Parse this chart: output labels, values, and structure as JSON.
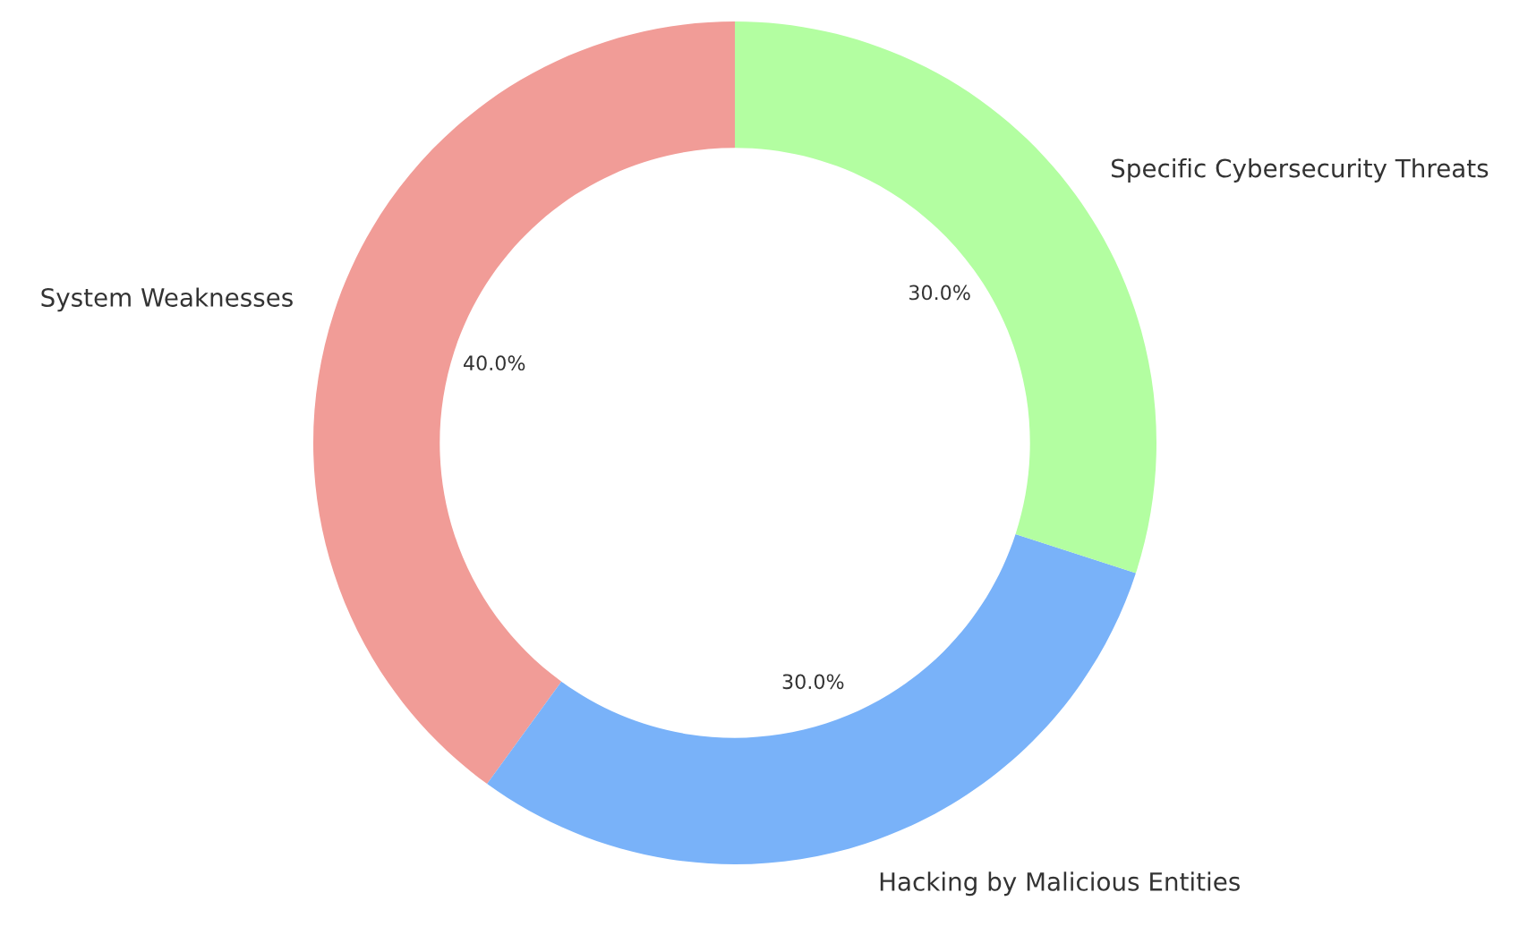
{
  "chart_data": {
    "type": "donut",
    "categories": [
      "System Weaknesses",
      "Hacking by Malicious Entities",
      "Specific Cybersecurity Threats"
    ],
    "values": [
      40,
      30,
      30
    ],
    "value_labels": [
      "40.0%",
      "30.0%",
      "30.0%"
    ],
    "colors": [
      "#f19c97",
      "#79b2f9",
      "#b3fea1"
    ],
    "legend": false
  }
}
